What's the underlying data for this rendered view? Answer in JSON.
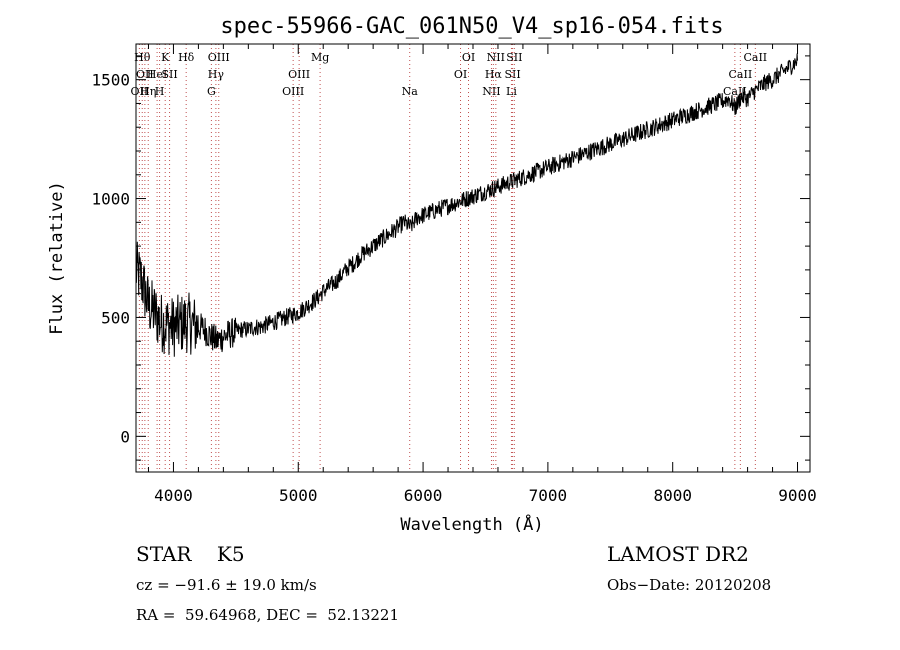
{
  "chart_data": {
    "type": "line",
    "title": "spec-55966-GAC_061N50_V4_sp16-054.fits",
    "xlabel": "Wavelength (Å)",
    "ylabel": "Flux (relative)",
    "xlim": [
      3700,
      9100
    ],
    "ylim": [
      -150,
      1650
    ],
    "x_ticks": [
      4000,
      5000,
      6000,
      7000,
      8000,
      9000
    ],
    "y_ticks": [
      0,
      500,
      1000,
      1500
    ],
    "grid": false,
    "series": [
      {
        "x": [
          3700,
          3750,
          3800,
          3850,
          3900,
          3950,
          4000,
          4050,
          4100,
          4150,
          4200,
          4250,
          4300,
          4350,
          4400,
          4450,
          4500,
          4550,
          4600,
          4650,
          4700,
          4750,
          4800,
          4850,
          4900,
          4950,
          5000,
          5050,
          5100,
          5150,
          5200,
          5250,
          5300,
          5350,
          5400,
          5450,
          5500,
          5550,
          5600,
          5650,
          5700,
          5750,
          5800,
          5850,
          5900,
          5950,
          6000,
          6050,
          6100,
          6150,
          6200,
          6250,
          6300,
          6350,
          6400,
          6450,
          6500,
          6550,
          6600,
          6650,
          6700,
          6750,
          6800,
          6850,
          6900,
          6950,
          7000,
          7050,
          7100,
          7150,
          7200,
          7250,
          7300,
          7350,
          7400,
          7450,
          7500,
          7550,
          7600,
          7650,
          7700,
          7750,
          7800,
          7850,
          7900,
          7950,
          8000,
          8050,
          8100,
          8150,
          8200,
          8250,
          8300,
          8350,
          8400,
          8450,
          8500,
          8550,
          8600,
          8650,
          8700,
          8750,
          8800,
          8850,
          8900,
          8950,
          9000
        ],
        "y": [
          700,
          650,
          550,
          520,
          480,
          470,
          460,
          470,
          480,
          470,
          460,
          450,
          420,
          400,
          420,
          430,
          440,
          450,
          450,
          460,
          460,
          470,
          480,
          490,
          500,
          510,
          520,
          540,
          560,
          580,
          610,
          630,
          650,
          680,
          710,
          730,
          760,
          780,
          800,
          820,
          840,
          860,
          880,
          900,
          880,
          920,
          930,
          940,
          950,
          960,
          970,
          980,
          990,
          1000,
          1010,
          1020,
          1030,
          1040,
          1050,
          1060,
          1070,
          1080,
          1090,
          1100,
          1110,
          1120,
          1130,
          1140,
          1150,
          1160,
          1170,
          1180,
          1190,
          1200,
          1210,
          1220,
          1230,
          1240,
          1250,
          1260,
          1270,
          1280,
          1290,
          1300,
          1310,
          1320,
          1330,
          1340,
          1350,
          1360,
          1370,
          1380,
          1390,
          1400,
          1410,
          1420,
          1380,
          1430,
          1420,
          1450,
          1470,
          1490,
          1500,
          1520,
          1540,
          1560,
          1580
        ]
      }
    ],
    "line_markers": [
      {
        "x": 3727,
        "row": 2,
        "label": "OII"
      },
      {
        "x": 3750,
        "row": 0,
        "label": "Hθ"
      },
      {
        "x": 3771,
        "row": 1,
        "label": "OII"
      },
      {
        "x": 3798,
        "row": 2,
        "label": "Hη"
      },
      {
        "x": 3869,
        "row": 1,
        "label": "HeI"
      },
      {
        "x": 3889,
        "row": 2,
        "label": "H"
      },
      {
        "x": 3934,
        "row": 0,
        "label": "K"
      },
      {
        "x": 3969,
        "row": 1,
        "label": "SII"
      },
      {
        "x": 4102,
        "row": 0,
        "label": "Hδ"
      },
      {
        "x": 4304,
        "row": 2,
        "label": "G"
      },
      {
        "x": 4340,
        "row": 1,
        "label": "Hγ"
      },
      {
        "x": 4363,
        "row": 0,
        "label": "OIII"
      },
      {
        "x": 4959,
        "row": 2,
        "label": "OIII"
      },
      {
        "x": 5007,
        "row": 1,
        "label": "OIII"
      },
      {
        "x": 5175,
        "row": 0,
        "label": "Mg"
      },
      {
        "x": 5893,
        "row": 2,
        "label": "Na"
      },
      {
        "x": 6300,
        "row": 1,
        "label": "OI"
      },
      {
        "x": 6364,
        "row": 0,
        "label": "OI"
      },
      {
        "x": 6548,
        "row": 2,
        "label": "NII"
      },
      {
        "x": 6563,
        "row": 1,
        "label": "Hα"
      },
      {
        "x": 6583,
        "row": 0,
        "label": "NII"
      },
      {
        "x": 6708,
        "row": 2,
        "label": "Li"
      },
      {
        "x": 6717,
        "row": 1,
        "label": "SII"
      },
      {
        "x": 6731,
        "row": 0,
        "label": "SII"
      },
      {
        "x": 8498,
        "row": 2,
        "label": "CaII"
      },
      {
        "x": 8542,
        "row": 1,
        "label": "CaII"
      },
      {
        "x": 8662,
        "row": 0,
        "label": "CaII"
      }
    ]
  },
  "info": {
    "classification": "STAR    K5",
    "survey": "LAMOST DR2",
    "redshift": "cz = −91.6 ± 19.0 km/s",
    "obs_date": "Obs−Date: 20120208",
    "coords": "RA =  59.64968, DEC =  52.13221"
  }
}
